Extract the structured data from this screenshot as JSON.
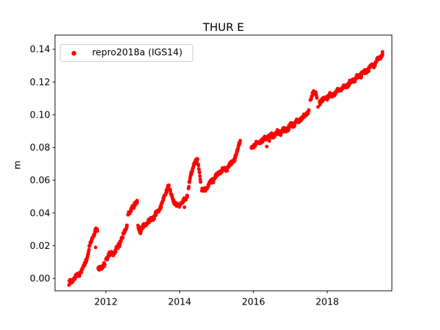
{
  "figure": {
    "title": "THUR E",
    "background": "#ffffff"
  },
  "colors": {
    "series_red": "#ff0000",
    "spine": "#000000",
    "text": "#000000",
    "legend_border": "#cccccc"
  },
  "chart_data": {
    "type": "scatter",
    "title": "THUR E",
    "xlabel": "",
    "ylabel": "m",
    "grid": false,
    "xlim": [
      2010.621,
      2019.751
    ],
    "ylim": [
      -0.00756,
      0.14868
    ],
    "xticks": [
      2012,
      2014,
      2016,
      2018
    ],
    "yticks": [
      0.0,
      0.02,
      0.04,
      0.06,
      0.08,
      0.1,
      0.12,
      0.14
    ],
    "ytick_decimals": 2,
    "legend": {
      "position": "upper-left",
      "entries": [
        {
          "label": "repro2018a (IGS14)",
          "color": "#ff0000",
          "marker": "dot"
        }
      ]
    },
    "series": [
      {
        "name": "repro2018a (IGS14)",
        "color": "#ff0000",
        "marker": "dot",
        "marker_radius_px": 2.6,
        "noise_m": 0.0016,
        "sample_step_years": 0.008,
        "segments": [
          [
            [
              2011.0,
              -0.003
            ],
            [
              2011.07,
              -0.0015
            ],
            [
              2011.14,
              0.0
            ],
            [
              2011.22,
              0.002
            ],
            [
              2011.3,
              0.0035
            ],
            [
              2011.38,
              0.006
            ],
            [
              2011.44,
              0.0095
            ],
            [
              2011.5,
              0.014
            ],
            [
              2011.56,
              0.019
            ],
            [
              2011.62,
              0.024
            ],
            [
              2011.68,
              0.0275
            ],
            [
              2011.73,
              0.0295
            ],
            [
              2011.77,
              0.029
            ]
          ],
          [
            [
              2011.79,
              0.0055
            ],
            [
              2011.85,
              0.0075
            ],
            [
              2011.91,
              0.006
            ],
            [
              2011.97,
              0.0085
            ]
          ],
          [
            [
              2012.0,
              0.0125
            ],
            [
              2012.08,
              0.014
            ],
            [
              2012.16,
              0.0148
            ],
            [
              2012.24,
              0.016
            ],
            [
              2012.31,
              0.0185
            ],
            [
              2012.38,
              0.022
            ],
            [
              2012.45,
              0.0255
            ],
            [
              2012.52,
              0.029
            ],
            [
              2012.57,
              0.0325
            ]
          ],
          [
            [
              2012.6,
              0.0385
            ],
            [
              2012.66,
              0.0405
            ],
            [
              2012.72,
              0.0435
            ],
            [
              2012.79,
              0.046
            ],
            [
              2012.85,
              0.0465
            ]
          ],
          [
            [
              2012.87,
              0.0315
            ],
            [
              2012.93,
              0.0295
            ],
            [
              2013.0,
              0.0315
            ],
            [
              2013.08,
              0.033
            ],
            [
              2013.17,
              0.035
            ],
            [
              2013.27,
              0.0365
            ],
            [
              2013.36,
              0.0395
            ],
            [
              2013.44,
              0.042
            ],
            [
              2013.5,
              0.0445
            ],
            [
              2013.56,
              0.048
            ],
            [
              2013.62,
              0.052
            ],
            [
              2013.67,
              0.0555
            ],
            [
              2013.71,
              0.057
            ]
          ],
          [
            [
              2013.74,
              0.0535
            ],
            [
              2013.79,
              0.0505
            ],
            [
              2013.85,
              0.047
            ],
            [
              2013.9,
              0.0448
            ],
            [
              2013.97,
              0.0445
            ],
            [
              2014.04,
              0.046
            ],
            [
              2014.1,
              0.047
            ],
            [
              2014.16,
              0.0485
            ],
            [
              2014.21,
              0.0505
            ]
          ],
          [
            [
              2014.24,
              0.056
            ],
            [
              2014.29,
              0.0615
            ],
            [
              2014.34,
              0.066
            ],
            [
              2014.38,
              0.0695
            ],
            [
              2014.43,
              0.0715
            ],
            [
              2014.47,
              0.0725
            ],
            [
              2014.51,
              0.0685
            ],
            [
              2014.54,
              0.0645
            ],
            [
              2014.57,
              0.059
            ]
          ],
          [
            [
              2014.6,
              0.0548
            ],
            [
              2014.66,
              0.0535
            ],
            [
              2014.72,
              0.0552
            ],
            [
              2014.79,
              0.0572
            ],
            [
              2014.86,
              0.059
            ],
            [
              2014.93,
              0.0608
            ],
            [
              2015.0,
              0.0632
            ],
            [
              2015.08,
              0.0648
            ],
            [
              2015.16,
              0.066
            ],
            [
              2015.24,
              0.0668
            ],
            [
              2015.32,
              0.0685
            ],
            [
              2015.4,
              0.0702
            ],
            [
              2015.48,
              0.0728
            ],
            [
              2015.55,
              0.0762
            ],
            [
              2015.6,
              0.081
            ],
            [
              2015.64,
              0.0842
            ]
          ],
          [
            [
              2015.94,
              0.0792
            ],
            [
              2016.0,
              0.0812
            ],
            [
              2016.08,
              0.0824
            ],
            [
              2016.16,
              0.0833
            ],
            [
              2016.25,
              0.0844
            ],
            [
              2016.35,
              0.0856
            ],
            [
              2016.45,
              0.0866
            ],
            [
              2016.55,
              0.0876
            ],
            [
              2016.65,
              0.0886
            ],
            [
              2016.75,
              0.0896
            ],
            [
              2016.85,
              0.0908
            ],
            [
              2016.95,
              0.0922
            ],
            [
              2017.05,
              0.0938
            ],
            [
              2017.15,
              0.0952
            ],
            [
              2017.25,
              0.0968
            ],
            [
              2017.35,
              0.0986
            ],
            [
              2017.43,
              0.1002
            ],
            [
              2017.5,
              0.103
            ]
          ],
          [
            [
              2017.54,
              0.1082
            ],
            [
              2017.59,
              0.1122
            ],
            [
              2017.64,
              0.1148
            ],
            [
              2017.69,
              0.1128
            ],
            [
              2017.72,
              0.1102
            ]
          ],
          [
            [
              2017.79,
              0.1078
            ],
            [
              2017.87,
              0.1092
            ],
            [
              2017.95,
              0.1102
            ],
            [
              2018.04,
              0.1112
            ],
            [
              2018.13,
              0.1122
            ],
            [
              2018.22,
              0.1135
            ],
            [
              2018.31,
              0.115
            ],
            [
              2018.4,
              0.1162
            ],
            [
              2018.5,
              0.1175
            ],
            [
              2018.6,
              0.119
            ],
            [
              2018.7,
              0.1208
            ],
            [
              2018.8,
              0.1228
            ],
            [
              2018.9,
              0.1245
            ],
            [
              2019.0,
              0.126
            ],
            [
              2019.1,
              0.1278
            ],
            [
              2019.2,
              0.1295
            ],
            [
              2019.3,
              0.1315
            ],
            [
              2019.38,
              0.1335
            ],
            [
              2019.45,
              0.1357
            ],
            [
              2019.5,
              0.1368
            ]
          ]
        ],
        "outliers": [
          [
            2011.72,
            0.019
          ],
          [
            2014.13,
            0.0435
          ],
          [
            2016.36,
            0.0806
          ],
          [
            2016.43,
            0.084
          ],
          [
            2017.75,
            0.1048
          ]
        ]
      }
    ]
  }
}
